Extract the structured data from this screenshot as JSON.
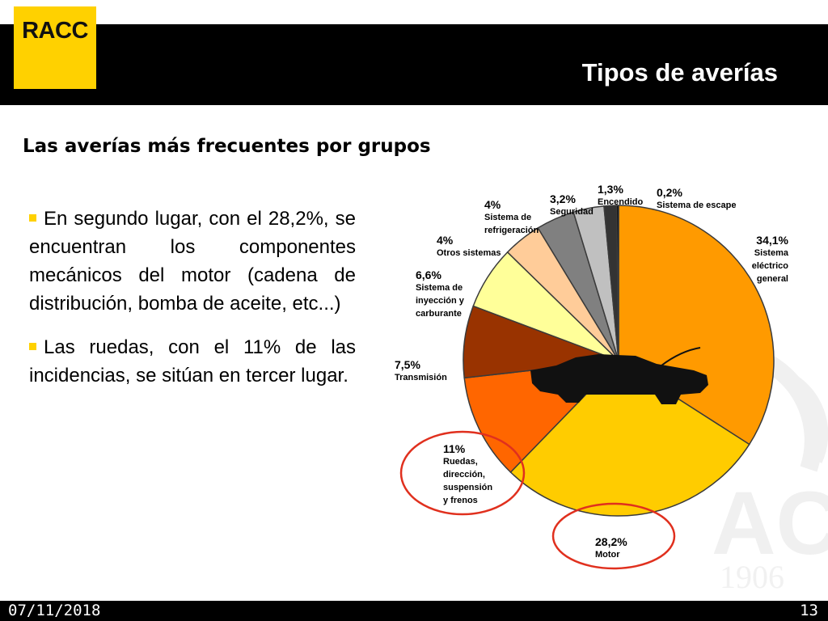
{
  "brand": {
    "logo_text": "RACC",
    "accent_color": "#ffd100",
    "watermark_year": "1906"
  },
  "slide": {
    "title": "Tipos de averías",
    "subtitle": "Las averías más frecuentes por grupos"
  },
  "bullets": [
    "En segundo lugar, con el 28,2%, se encuentran los componentes mecánicos del motor (cadena de distribución, bomba de aceite, etc...)",
    "Las ruedas, con el 11% de las incidencias, se sitúan en tercer lugar."
  ],
  "footer": {
    "date": "07/11/2018",
    "page": "13"
  },
  "icons": {
    "car": "car-silhouette-icon"
  },
  "chart_data": {
    "type": "pie",
    "title": "",
    "slices": [
      {
        "pct_label": "34,1%",
        "name_lines": [
          "Sistema",
          "eléctrico",
          "general"
        ],
        "value": 34.1,
        "color": "#ff9a00"
      },
      {
        "pct_label": "28,2%",
        "name_lines": [
          "Motor"
        ],
        "value": 28.2,
        "color": "#ffcc00"
      },
      {
        "pct_label": "11%",
        "name_lines": [
          "Ruedas,",
          "dirección,",
          "suspensión",
          "y frenos"
        ],
        "value": 11,
        "color": "#ff6600"
      },
      {
        "pct_label": "7,5%",
        "name_lines": [
          "Transmisión"
        ],
        "value": 7.5,
        "color": "#993300"
      },
      {
        "pct_label": "6,6%",
        "name_lines": [
          "Sistema de",
          "inyección y",
          "carburante"
        ],
        "value": 6.6,
        "color": "#ffff99"
      },
      {
        "pct_label": "4%",
        "name_lines": [
          "Otros sistemas"
        ],
        "value": 4,
        "color": "#ffcc99"
      },
      {
        "pct_label": "4%",
        "name_lines": [
          "Sistema de",
          "refrigeración"
        ],
        "value": 4,
        "color": "#808080"
      },
      {
        "pct_label": "3,2%",
        "name_lines": [
          "Seguridad"
        ],
        "value": 3.2,
        "color": "#c0c0c0"
      },
      {
        "pct_label": "1,3%",
        "name_lines": [
          "Encendido"
        ],
        "value": 1.3,
        "color": "#333333"
      },
      {
        "pct_label": "0,2%",
        "name_lines": [
          "Sistema de escape"
        ],
        "value": 0.2,
        "color": "#000000"
      }
    ],
    "highlighted": [
      "Motor",
      "Ruedas, dirección, suspensión y frenos"
    ],
    "highlight_color": "#e0301e"
  }
}
